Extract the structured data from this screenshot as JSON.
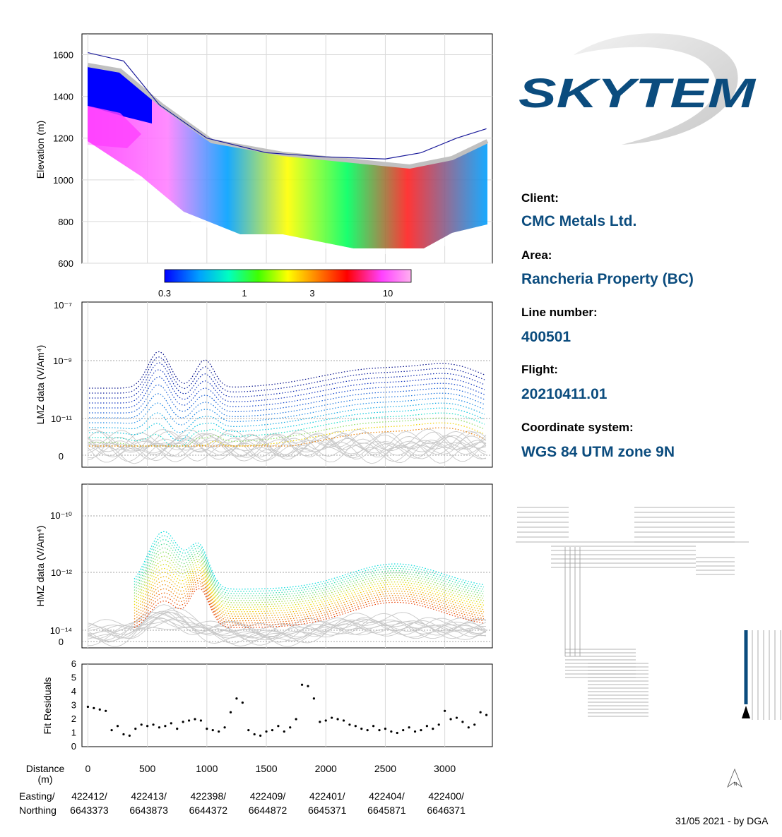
{
  "brand": {
    "name": "SKYTEM",
    "color": "#0b4c7e"
  },
  "info": {
    "client_label": "Client:",
    "client": "CMC Metals Ltd.",
    "area_label": "Area:",
    "area": "Rancheria Property (BC)",
    "line_label": "Line number:",
    "line": "400501",
    "flight_label": "Flight:",
    "flight": "20210411.01",
    "coord_label": "Coordinate system:",
    "coord": "WGS 84 UTM zone 9N"
  },
  "footer": "31/05 2021 - by DGA",
  "chart_data": [
    {
      "type": "heatmap",
      "name": "resistivity-section",
      "ylabel": "Elevation (m)",
      "xlim": [
        -50,
        3400
      ],
      "ylim": [
        600,
        1700
      ],
      "yticks": [
        600,
        800,
        1000,
        1200,
        1400,
        1600
      ],
      "topography": {
        "x": [
          0,
          300,
          600,
          1000,
          1500,
          2000,
          2500,
          2800,
          3100,
          3350
        ],
        "y": [
          1610,
          1570,
          1360,
          1200,
          1130,
          1110,
          1100,
          1130,
          1200,
          1245
        ]
      },
      "colorbar": {
        "ticks": [
          "0.3",
          "1",
          "3",
          "10"
        ],
        "colors": [
          "#0000ff",
          "#00a0ff",
          "#00ffc0",
          "#40ff00",
          "#ffff00",
          "#ff8000",
          "#ff0000",
          "#ff40ff",
          "#ffb0f0"
        ]
      }
    },
    {
      "type": "line",
      "name": "lmz-data",
      "ylabel": "LMZ data (V/Am⁴)",
      "yticks": [
        "10⁻⁷",
        "10⁻⁹",
        "10⁻¹¹",
        "0"
      ],
      "xlim": [
        -50,
        3400
      ]
    },
    {
      "type": "line",
      "name": "hmz-data",
      "ylabel": "HMZ data (V/Am⁴)",
      "yticks": [
        "10⁻¹⁰",
        "10⁻¹²",
        "10⁻¹⁴",
        "0"
      ],
      "xlim": [
        -50,
        3400
      ]
    },
    {
      "type": "scatter",
      "name": "fit-residuals",
      "ylabel": "Fit Residuals",
      "ylim": [
        0,
        6
      ],
      "yticks": [
        0,
        1,
        2,
        3,
        4,
        5,
        6
      ],
      "x": [
        0,
        50,
        100,
        150,
        200,
        250,
        300,
        350,
        400,
        450,
        500,
        550,
        600,
        650,
        700,
        750,
        800,
        850,
        900,
        950,
        1000,
        1050,
        1100,
        1150,
        1200,
        1250,
        1300,
        1350,
        1400,
        1450,
        1500,
        1550,
        1600,
        1650,
        1700,
        1750,
        1800,
        1850,
        1900,
        1950,
        2000,
        2050,
        2100,
        2150,
        2200,
        2250,
        2300,
        2350,
        2400,
        2450,
        2500,
        2550,
        2600,
        2650,
        2700,
        2750,
        2800,
        2850,
        2900,
        2950,
        3000,
        3050,
        3100,
        3150,
        3200,
        3250,
        3300,
        3350
      ],
      "y": [
        2.9,
        2.8,
        2.7,
        2.6,
        1.2,
        1.5,
        0.9,
        0.8,
        1.3,
        1.6,
        1.5,
        1.6,
        1.4,
        1.5,
        1.7,
        1.3,
        1.8,
        1.9,
        2.0,
        1.9,
        1.3,
        1.2,
        1.1,
        1.4,
        2.5,
        3.5,
        3.2,
        1.2,
        0.9,
        0.8,
        1.1,
        1.2,
        1.5,
        1.1,
        1.4,
        2.0,
        4.5,
        4.4,
        3.5,
        1.8,
        1.9,
        2.1,
        2.0,
        1.9,
        1.6,
        1.5,
        1.3,
        1.2,
        1.5,
        1.2,
        1.3,
        1.1,
        1.0,
        1.2,
        1.4,
        1.1,
        1.2,
        1.5,
        1.3,
        1.6,
        2.6,
        2.0,
        2.1,
        1.8,
        1.4,
        1.6,
        2.5,
        2.3
      ]
    }
  ],
  "x_axis": {
    "distance_label": "Distance",
    "distance_unit": "(m)",
    "distance_ticks": [
      "0",
      "500",
      "1000",
      "1500",
      "2000",
      "2500",
      "3000"
    ],
    "coord_label_e": "Easting/",
    "coord_label_n": "Northing",
    "easting": [
      "422412/",
      "422413/",
      "422398/",
      "422409/",
      "422401/",
      "422404/",
      "422400/"
    ],
    "northing": [
      "6643373",
      "6643873",
      "6644372",
      "6644872",
      "6645371",
      "6645871",
      "6646371"
    ]
  },
  "map": {
    "highlight_color": "#0b4c7e",
    "line_color": "#9a9a9a"
  }
}
